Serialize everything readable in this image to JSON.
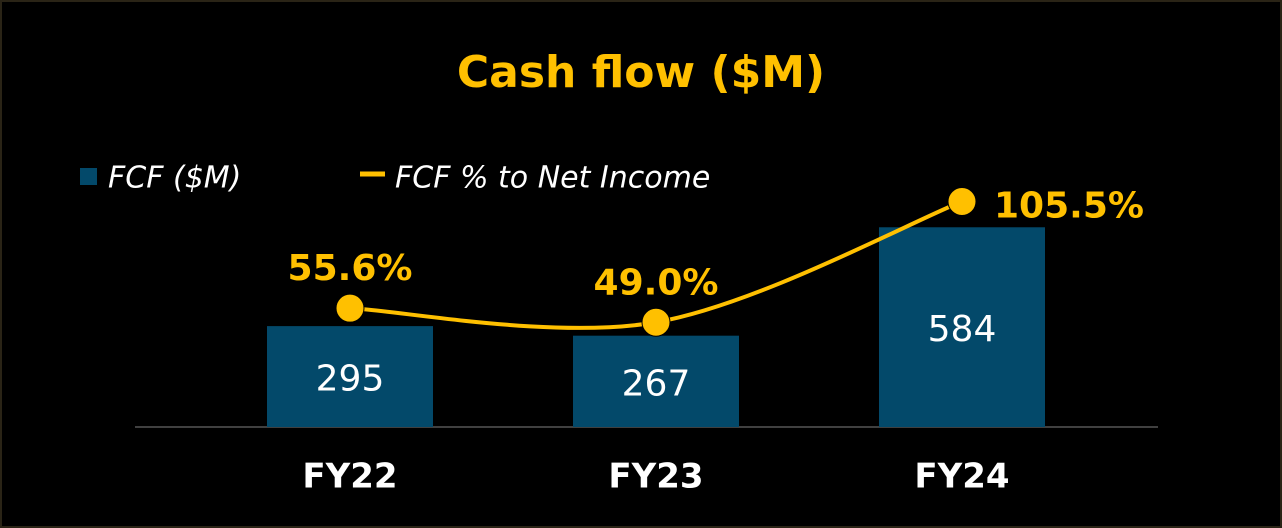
{
  "chart_data": {
    "type": "bar-line",
    "title": "Cash flow ($M)",
    "categories": [
      "FY22",
      "FY23",
      "FY24"
    ],
    "series": [
      {
        "name": "FCF ($M)",
        "type": "bar",
        "color": "#03496a",
        "values": [
          295,
          267,
          584
        ]
      },
      {
        "name": "FCF % to Net Income",
        "type": "line",
        "axis": "y2",
        "color": "#ffc000",
        "values": [
          55.6,
          49.0,
          105.5
        ],
        "value_labels": [
          "55.6%",
          "49.0%",
          "105.5%"
        ]
      }
    ],
    "ylim": [
      0,
      1000
    ],
    "y2lim": [
      0,
      160
    ]
  }
}
